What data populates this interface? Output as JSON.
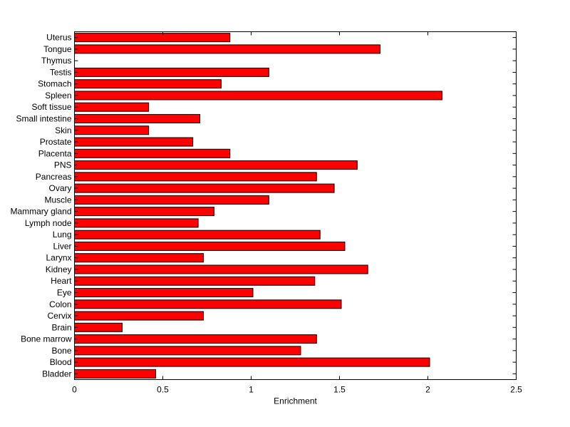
{
  "chart_data": {
    "type": "bar",
    "orientation": "horizontal",
    "title": "",
    "xlabel": "Enrichment",
    "ylabel": "",
    "xlim": [
      0,
      2.5
    ],
    "xticks": [
      0,
      0.5,
      1,
      1.5,
      2,
      2.5
    ],
    "xtick_labels": [
      "0",
      "0.5",
      "1",
      "1.5",
      "2",
      "2.5"
    ],
    "grid": false,
    "bar_color": "#ff0000",
    "edge_color": "#000000",
    "categories": [
      "Bladder",
      "Blood",
      "Bone",
      "Bone marrow",
      "Brain",
      "Cervix",
      "Colon",
      "Eye",
      "Heart",
      "Kidney",
      "Larynx",
      "Liver",
      "Lung",
      "Lymph node",
      "Mammary gland",
      "Muscle",
      "Ovary",
      "Pancreas",
      "PNS",
      "Placenta",
      "Prostate",
      "Skin",
      "Small intestine",
      "Soft tissue",
      "Spleen",
      "Stomach",
      "Testis",
      "Thymus",
      "Tongue",
      "Uterus"
    ],
    "values": [
      0.46,
      2.01,
      1.28,
      1.37,
      0.27,
      0.73,
      1.51,
      1.01,
      1.36,
      1.66,
      0.73,
      1.53,
      1.39,
      0.7,
      0.79,
      1.1,
      1.47,
      1.37,
      1.6,
      0.88,
      0.67,
      0.42,
      0.71,
      0.42,
      2.08,
      0.83,
      1.1,
      0.0,
      1.73,
      0.88
    ]
  }
}
